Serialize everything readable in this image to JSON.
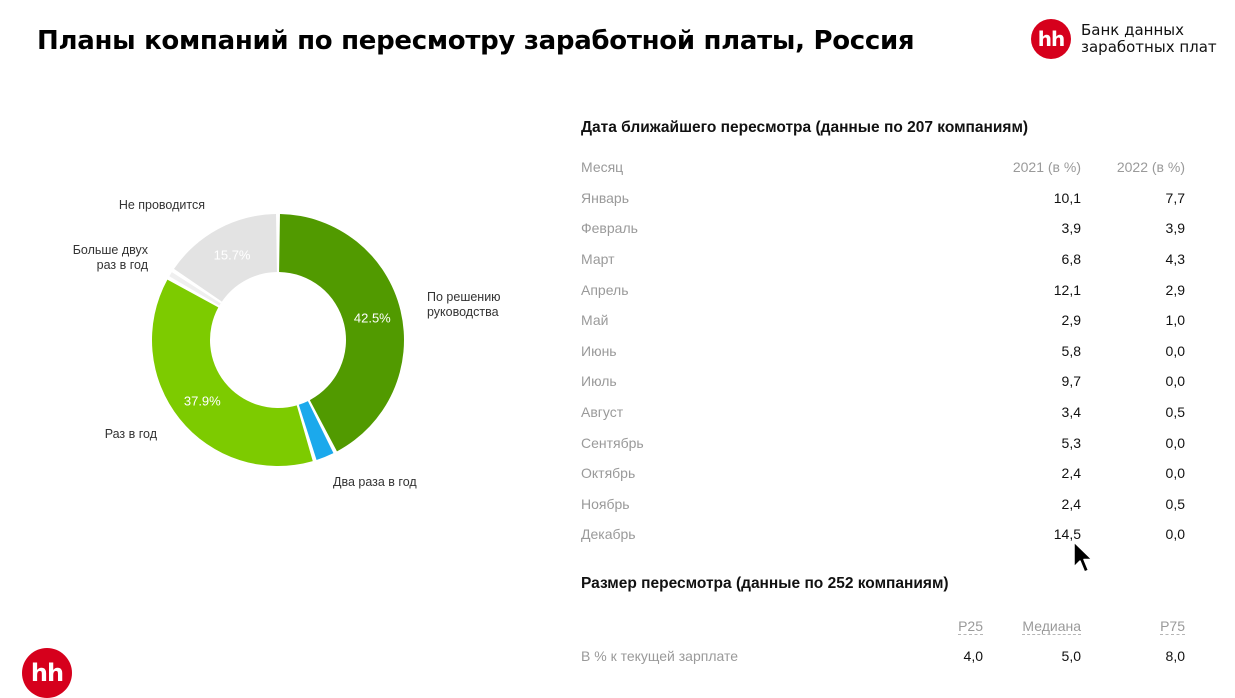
{
  "title": "Планы компаний по пересмотру заработной платы, Россия",
  "brand": {
    "logo_text": "hh",
    "line1": "Банк данных",
    "line2": "заработных плат"
  },
  "chart_data": {
    "type": "pie",
    "donut": true,
    "series": [
      {
        "name": "По решению руководства",
        "value": 42.5,
        "value_label": "42.5%",
        "color": "#519a00",
        "label_lines": [
          "По решению",
          "руководства"
        ]
      },
      {
        "name": "Два раза в год",
        "value": 2.8,
        "value_label": "",
        "color": "#1ba9ec",
        "label_lines": [
          "Два раза в год"
        ]
      },
      {
        "name": "Раз в год",
        "value": 37.9,
        "value_label": "37.9%",
        "color": "#7dcb00",
        "label_lines": [
          "Раз в год"
        ]
      },
      {
        "name": "Больше двух раз в год",
        "value": 1.1,
        "value_label": "",
        "color": "#efefef",
        "label_lines": [
          "Больше двух",
          "раз в год"
        ]
      },
      {
        "name": "Не проводится",
        "value": 15.7,
        "value_label": "15.7%",
        "color": "#e3e3e3",
        "label_lines": [
          "Не проводится"
        ]
      }
    ]
  },
  "review_dates": {
    "title": "Дата ближайшего пересмотра (данные по 207 компаниям)",
    "headers": [
      "Месяц",
      "2021 (в %)",
      "2022 (в %)"
    ],
    "rows": [
      [
        "Январь",
        "10,1",
        "7,7"
      ],
      [
        "Февраль",
        "3,9",
        "3,9"
      ],
      [
        "Март",
        "6,8",
        "4,3"
      ],
      [
        "Апрель",
        "12,1",
        "2,9"
      ],
      [
        "Май",
        "2,9",
        "1,0"
      ],
      [
        "Июнь",
        "5,8",
        "0,0"
      ],
      [
        "Июль",
        "9,7",
        "0,0"
      ],
      [
        "Август",
        "3,4",
        "0,5"
      ],
      [
        "Сентябрь",
        "5,3",
        "0,0"
      ],
      [
        "Октябрь",
        "2,4",
        "0,0"
      ],
      [
        "Ноябрь",
        "2,4",
        "0,5"
      ],
      [
        "Декабрь",
        "14,5",
        "0,0"
      ]
    ]
  },
  "review_size": {
    "title": "Размер пересмотра (данные по 252 компаниям)",
    "headers": [
      "P25",
      "Медиана",
      "P75"
    ],
    "row_label": "В % к текущей зарплате",
    "values": [
      "4,0",
      "5,0",
      "8,0"
    ]
  },
  "icons": {
    "cursor": "arrow-cursor-icon"
  }
}
